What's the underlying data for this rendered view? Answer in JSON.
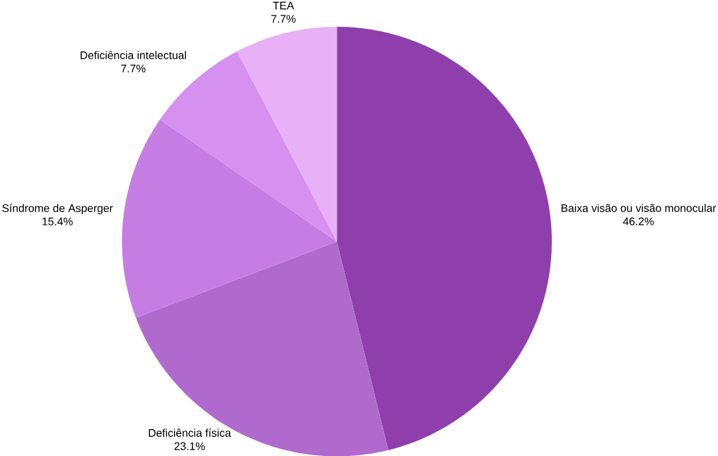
{
  "chart_data": {
    "type": "pie",
    "categories": [
      "Baixa visão ou visão monocular",
      "Deficiência física",
      "Síndrome de Asperger",
      "Deficiência intelectual",
      "TEA"
    ],
    "values": [
      46.2,
      23.1,
      15.4,
      7.7,
      7.7
    ],
    "colors": [
      "#8e3fab",
      "#b06ace",
      "#c67de3",
      "#d690ef",
      "#e8b0f6"
    ],
    "value_labels": [
      "46.2%",
      "23.1%",
      "15.4%",
      "7.7%",
      "7.7%"
    ]
  }
}
